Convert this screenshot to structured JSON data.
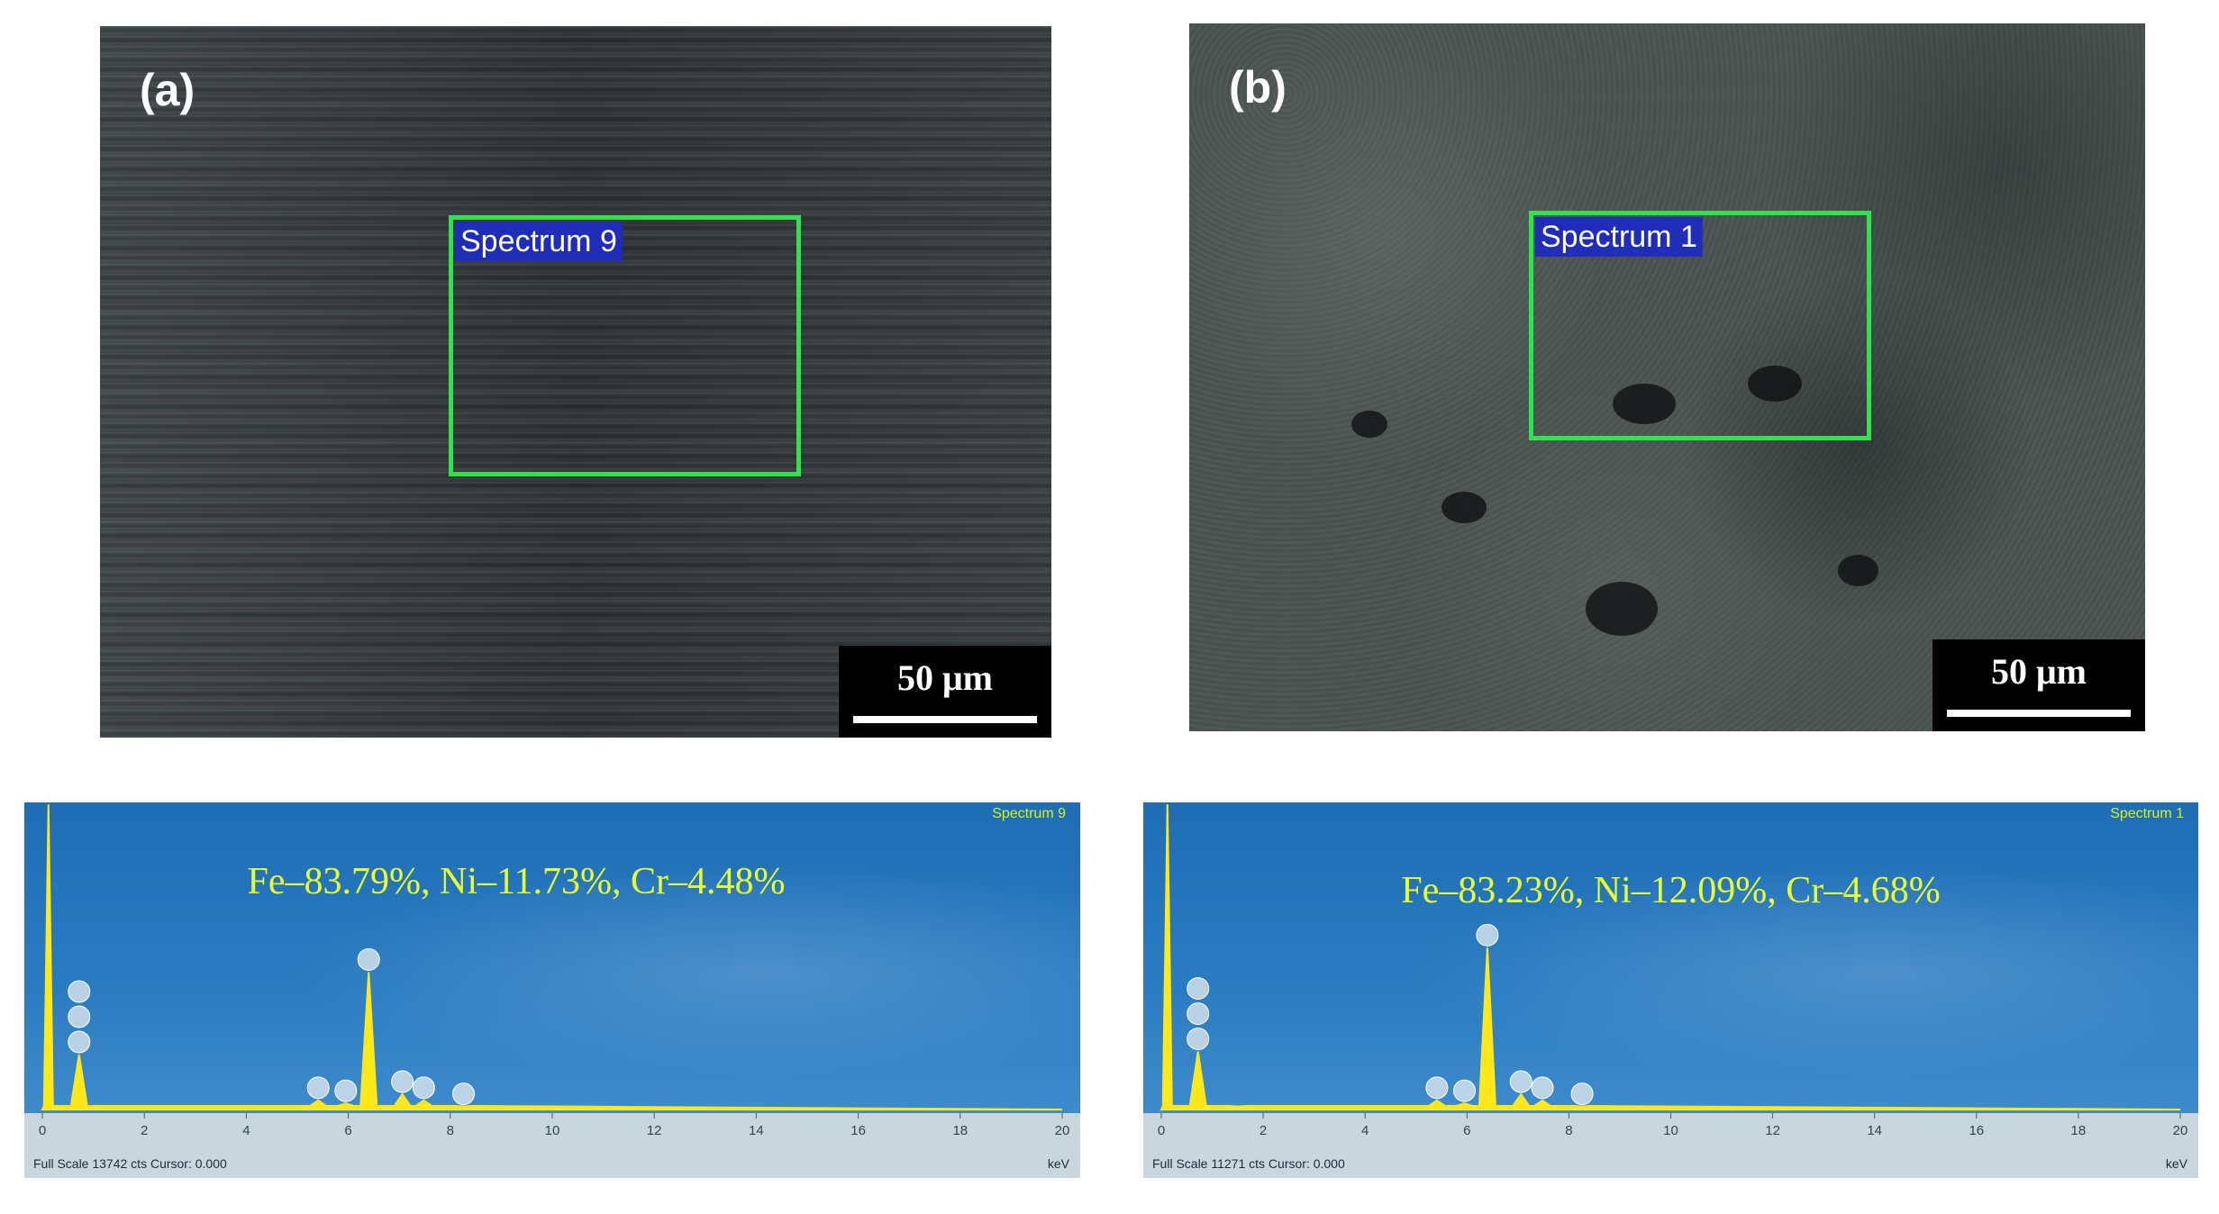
{
  "panel_a": {
    "label": "(a)",
    "roi_label": "Spectrum 9",
    "scale_text": "50 μm",
    "eds": {
      "spectrum_name": "Spectrum 9",
      "composition": "Fe–83.79%, Ni–11.73%, Cr–4.48%",
      "footer": "Full Scale 13742 cts Cursor: 0.000",
      "unit": "keV",
      "ticks": [
        "0",
        "2",
        "4",
        "6",
        "8",
        "10",
        "12",
        "14",
        "16",
        "18",
        "20"
      ],
      "peaks": [
        {
          "kev": 0.12,
          "height": 1.0
        },
        {
          "kev": 0.72,
          "height": 0.18
        },
        {
          "kev": 5.41,
          "height": 0.03
        },
        {
          "kev": 5.95,
          "height": 0.02
        },
        {
          "kev": 6.4,
          "height": 0.45
        },
        {
          "kev": 7.06,
          "height": 0.05
        },
        {
          "kev": 7.48,
          "height": 0.03
        },
        {
          "kev": 8.26,
          "height": 0.01
        }
      ],
      "markers_kev": [
        0.72,
        0.72,
        0.72,
        5.41,
        5.95,
        6.4,
        7.06,
        7.48,
        8.26
      ]
    }
  },
  "panel_b": {
    "label": "(b)",
    "roi_label": "Spectrum 1",
    "scale_text": "50 μm",
    "eds": {
      "spectrum_name": "Spectrum 1",
      "composition": "Fe–83.23%, Ni–12.09%, Cr–4.68%",
      "footer": "Full Scale 11271 cts Cursor: 0.000",
      "unit": "keV",
      "ticks": [
        "0",
        "2",
        "4",
        "6",
        "8",
        "10",
        "12",
        "14",
        "16",
        "18",
        "20"
      ],
      "peaks": [
        {
          "kev": 0.12,
          "height": 1.0
        },
        {
          "kev": 0.72,
          "height": 0.19
        },
        {
          "kev": 1.5,
          "height": 0.01
        },
        {
          "kev": 5.41,
          "height": 0.03
        },
        {
          "kev": 5.95,
          "height": 0.02
        },
        {
          "kev": 6.4,
          "height": 0.53
        },
        {
          "kev": 7.06,
          "height": 0.05
        },
        {
          "kev": 7.48,
          "height": 0.03
        },
        {
          "kev": 8.26,
          "height": 0.01
        }
      ],
      "markers_kev": [
        0.72,
        0.72,
        0.72,
        5.41,
        5.95,
        6.4,
        7.06,
        7.48,
        8.26
      ]
    }
  },
  "colors": {
    "roi": "#2fe34a",
    "spectrum_line": "#ffe81a",
    "composition_text": "#e7ff2f",
    "eds_background": "#2a7cc2"
  }
}
